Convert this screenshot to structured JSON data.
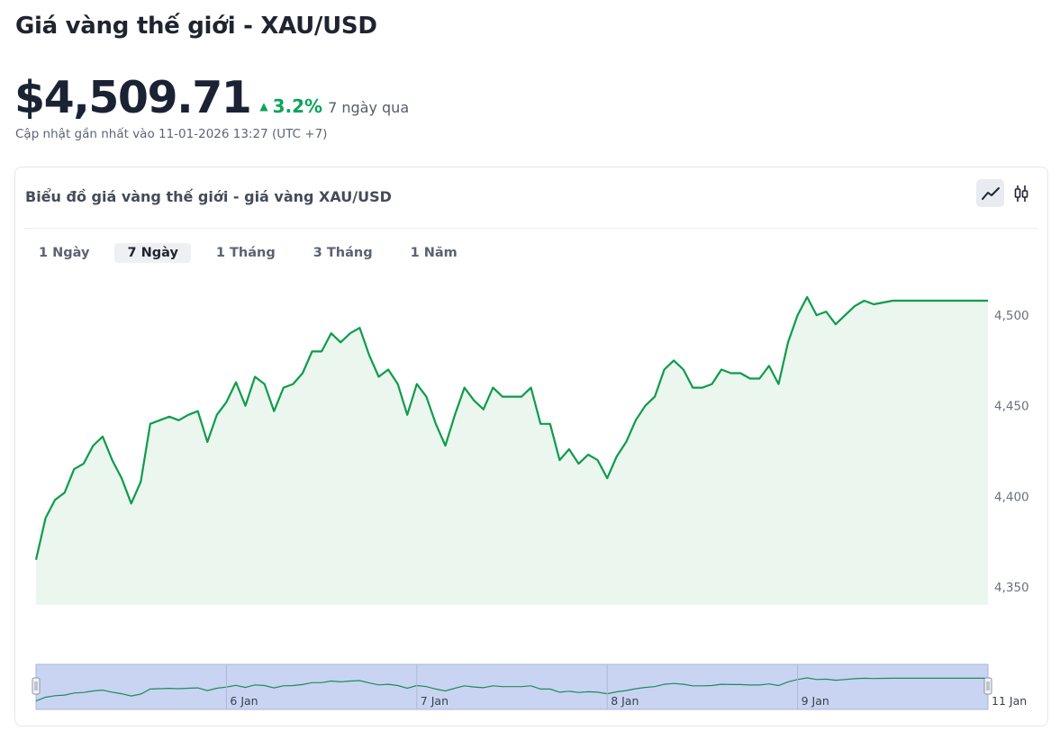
{
  "header": {
    "title": "Giá vàng thế giới - XAU/USD",
    "price": "$4,509.71",
    "change_pct": "3.2%",
    "change_period": "7 ngày qua",
    "updated": "Cập nhật gần nhất vào 11-01-2026 13:27 (UTC +7)"
  },
  "card": {
    "title": "Biểu đồ giá vàng thế giới - giá vàng XAU/USD",
    "chart_type_buttons": [
      {
        "icon": "line-chart-icon",
        "active": true
      },
      {
        "icon": "candlestick-icon",
        "active": false
      }
    ],
    "tabs": [
      {
        "label": "1 Ngày",
        "active": false
      },
      {
        "label": "7 Ngày",
        "active": true
      },
      {
        "label": "1 Tháng",
        "active": false
      },
      {
        "label": "3 Tháng",
        "active": false
      },
      {
        "label": "1 Năm",
        "active": false
      }
    ]
  },
  "colors": {
    "up": "#0aa45a",
    "line": "#0d9c4a",
    "area": "#ebf6ef",
    "navigator": "#c8d4f2"
  },
  "chart_data": {
    "type": "area",
    "ylim": [
      4340,
      4510
    ],
    "yticks": [
      4350,
      4400,
      4450,
      4500
    ],
    "ytick_labels": [
      "4,350",
      "4,400",
      "4,450",
      "4,500"
    ],
    "x_day_ticks": [
      {
        "x": 1,
        "label": "6 Jan"
      },
      {
        "x": 2,
        "label": "7 Jan"
      },
      {
        "x": 3,
        "label": "8 Jan"
      },
      {
        "x": 4,
        "label": "9 Jan"
      },
      {
        "x": 5,
        "label": "11 Jan"
      }
    ],
    "x": [
      0,
      0.05,
      0.1,
      0.15,
      0.2,
      0.25,
      0.3,
      0.35,
      0.4,
      0.45,
      0.5,
      0.55,
      0.6,
      0.65,
      0.7,
      0.75,
      0.8,
      0.85,
      0.9,
      0.95,
      1.0,
      1.05,
      1.1,
      1.15,
      1.2,
      1.25,
      1.3,
      1.35,
      1.4,
      1.45,
      1.5,
      1.55,
      1.6,
      1.65,
      1.7,
      1.75,
      1.8,
      1.85,
      1.9,
      1.95,
      2.0,
      2.05,
      2.1,
      2.15,
      2.2,
      2.25,
      2.3,
      2.35,
      2.4,
      2.45,
      2.5,
      2.55,
      2.6,
      2.65,
      2.7,
      2.75,
      2.8,
      2.85,
      2.9,
      2.95,
      3.0,
      3.05,
      3.1,
      3.15,
      3.2,
      3.25,
      3.3,
      3.35,
      3.4,
      3.45,
      3.5,
      3.55,
      3.6,
      3.65,
      3.7,
      3.75,
      3.8,
      3.85,
      3.9,
      3.95,
      4.0,
      4.05,
      4.1,
      4.15,
      4.2,
      4.25,
      4.3,
      4.35,
      4.4,
      4.45,
      4.5,
      4.55,
      4.6,
      4.65,
      4.7,
      4.75,
      4.8,
      4.85,
      4.9,
      4.95,
      5.0
    ],
    "values": [
      4365,
      4388,
      4398,
      4402,
      4415,
      4418,
      4428,
      4433,
      4420,
      4410,
      4396,
      4408,
      4440,
      4442,
      4444,
      4442,
      4445,
      4447,
      4430,
      4445,
      4452,
      4463,
      4450,
      4466,
      4462,
      4447,
      4460,
      4462,
      4468,
      4480,
      4480,
      4490,
      4485,
      4490,
      4493,
      4478,
      4466,
      4470,
      4462,
      4445,
      4462,
      4455,
      4440,
      4428,
      4445,
      4460,
      4453,
      4448,
      4460,
      4455,
      4455,
      4455,
      4460,
      4440,
      4440,
      4420,
      4426,
      4418,
      4423,
      4420,
      4410,
      4422,
      4430,
      4442,
      4450,
      4455,
      4470,
      4475,
      4470,
      4460,
      4460,
      4462,
      4470,
      4468,
      4468,
      4465,
      4465,
      4472,
      4462,
      4485,
      4500,
      4510,
      4500,
      4502,
      4495,
      4500,
      4505,
      4508,
      4506,
      4507,
      4508,
      4508,
      4508,
      4508,
      4508,
      4508,
      4508,
      4508,
      4508,
      4508,
      4508
    ]
  }
}
